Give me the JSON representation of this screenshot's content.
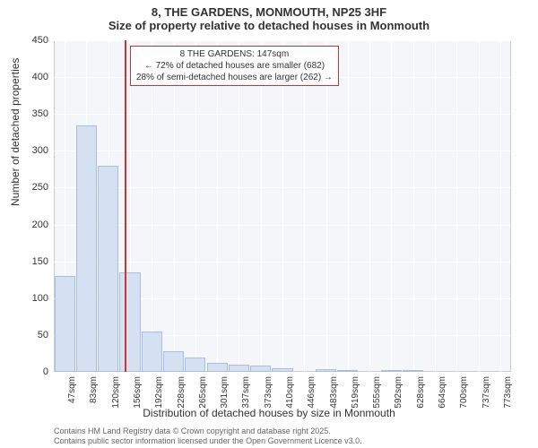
{
  "title": {
    "line1": "8, THE GARDENS, MONMOUTH, NP25 3HF",
    "line2": "Size of property relative to detached houses in Monmouth",
    "fontsize": 13,
    "color": "#333333"
  },
  "chart": {
    "type": "histogram",
    "background_color": "#f4f6fa",
    "grid_color": "#ffffff",
    "border_color": "#cccccc",
    "bar_fill": "#d5e1f3",
    "bar_border": "#a9bfe0",
    "bar_width_ratio": 0.95,
    "ylim": [
      0,
      450
    ],
    "ytick_step": 50,
    "yticks": [
      0,
      50,
      100,
      150,
      200,
      250,
      300,
      350,
      400,
      450
    ],
    "ylabel": "Number of detached properties",
    "xlabel": "Distribution of detached houses by size in Monmouth",
    "label_fontsize": 12,
    "tick_fontsize": 11,
    "categories": [
      "47sqm",
      "83sqm",
      "120sqm",
      "156sqm",
      "192sqm",
      "228sqm",
      "265sqm",
      "301sqm",
      "337sqm",
      "373sqm",
      "410sqm",
      "446sqm",
      "483sqm",
      "519sqm",
      "555sqm",
      "592sqm",
      "628sqm",
      "664sqm",
      "700sqm",
      "737sqm",
      "773sqm"
    ],
    "values": [
      130,
      335,
      280,
      135,
      55,
      28,
      20,
      12,
      10,
      8,
      5,
      0,
      4,
      3,
      0,
      2,
      3,
      0,
      0,
      0,
      0
    ],
    "reference": {
      "position_index": 2.75,
      "color": "#cc3333",
      "width": 2
    },
    "annotation": {
      "line1": "8 THE GARDENS: 147sqm",
      "line2": "← 72% of detached houses are smaller (682)",
      "line3": "28% of semi-detached houses are larger (262) →",
      "border_color": "#cc3333",
      "fontsize": 10
    }
  },
  "footer": {
    "line1": "Contains HM Land Registry data © Crown copyright and database right 2025.",
    "line2": "Contains public sector information licensed under the Open Government Licence v3.0.",
    "fontsize": 9,
    "color": "#666666"
  }
}
